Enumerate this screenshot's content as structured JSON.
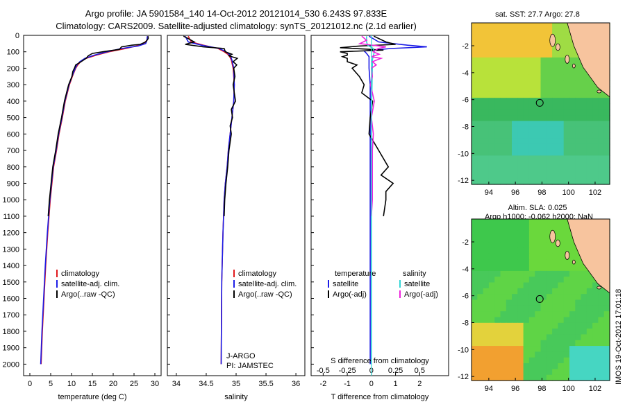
{
  "header": {
    "line1": "Argo profile: JA 5901584_140 14-Oct-2012 20121014_530 6.243S 97.833E",
    "line2": "Climatology: CARS2009. Satellite-adjusted climatology: synTS_20121012.nc (2.1d earlier)"
  },
  "colors": {
    "climatology": "#e0161b",
    "satellite": "#1c1ce6",
    "argo": "#000000",
    "s_satellite": "#33d6d6",
    "s_argo": "#ee22dd",
    "land": "#f7c49e"
  },
  "depth_axis": {
    "ticks": [
      0,
      100,
      200,
      300,
      400,
      500,
      600,
      700,
      800,
      900,
      1000,
      1100,
      1200,
      1300,
      1400,
      1500,
      1600,
      1700,
      1800,
      1900,
      2000
    ],
    "range": [
      0,
      2070
    ]
  },
  "chart_data": [
    {
      "type": "line",
      "id": "temperature",
      "xlabel": "temperature (deg C)",
      "xlim": [
        -1.5,
        31.5
      ],
      "xticks": [
        0,
        5,
        10,
        15,
        20,
        25,
        30
      ],
      "legend": [
        "climatology",
        "satellite-adj. clim.",
        "Argo(..raw -QC)"
      ],
      "series": [
        {
          "name": "climatology",
          "depth": [
            5,
            30,
            50,
            65,
            80,
            100,
            120,
            140,
            160,
            180,
            200,
            250,
            300,
            400,
            500,
            600,
            700,
            800,
            900,
            1000,
            1200,
            1400,
            1600,
            1800,
            2000
          ],
          "values": [
            28.3,
            28.1,
            27.3,
            25.5,
            23,
            19,
            16,
            13.5,
            12.2,
            11.5,
            11.0,
            10.2,
            9.5,
            8.5,
            7.8,
            7.0,
            6.4,
            5.7,
            5.3,
            4.9,
            4.3,
            3.8,
            3.4,
            3.0,
            2.7
          ]
        },
        {
          "name": "satellite-adj. clim.",
          "depth": [
            5,
            30,
            50,
            65,
            80,
            100,
            120,
            140,
            160,
            180,
            200,
            250,
            300,
            400,
            500,
            600,
            700,
            800,
            900,
            1000,
            1200,
            1400,
            1600,
            1800,
            2000
          ],
          "values": [
            28.2,
            28.1,
            27.8,
            26,
            22,
            18.5,
            15.5,
            13.2,
            12,
            11.3,
            10.9,
            10.1,
            9.4,
            8.4,
            7.7,
            6.9,
            6.3,
            5.6,
            5.2,
            4.8,
            4.2,
            3.7,
            3.3,
            2.9,
            2.6
          ]
        },
        {
          "name": "Argo(..raw -QC)",
          "depth": [
            5,
            20,
            40,
            55,
            60,
            70,
            85,
            100,
            110,
            125,
            140,
            160,
            180,
            200,
            220,
            250,
            300,
            400,
            500,
            600,
            700,
            800,
            900,
            1000,
            1100
          ],
          "values": [
            28.4,
            28.4,
            27.8,
            26.5,
            24.5,
            22,
            21.5,
            17.5,
            15,
            14,
            13.5,
            12.3,
            11,
            10.7,
            10.3,
            10.1,
            9.3,
            8.3,
            7.6,
            6.8,
            6.2,
            5.5,
            5.1,
            4.7,
            4.4
          ]
        }
      ]
    },
    {
      "type": "line",
      "id": "salinity",
      "xlabel": "salinity",
      "xlim": [
        33.85,
        36.15
      ],
      "xticks": [
        34,
        34.5,
        35,
        35.5,
        36
      ],
      "legend": [
        "climatology",
        "satellite-adj. clim.",
        "Argo(..raw -QC)"
      ],
      "annotation": [
        "J-ARGO",
        "PI: JAMSTEC"
      ],
      "series": [
        {
          "name": "climatology",
          "depth": [
            5,
            40,
            60,
            80,
            100,
            120,
            150,
            200,
            300,
            400,
            500,
            600,
            700,
            800,
            900,
            1000,
            1200,
            1500,
            2000
          ],
          "values": [
            34.2,
            34.25,
            34.45,
            34.7,
            34.8,
            34.88,
            34.92,
            34.95,
            34.97,
            34.96,
            34.93,
            34.9,
            34.87,
            34.85,
            34.82,
            34.8,
            34.78,
            34.76,
            34.75
          ]
        },
        {
          "name": "satellite-adj. clim.",
          "depth": [
            5,
            40,
            60,
            80,
            100,
            120,
            150,
            200,
            300,
            400,
            500,
            600,
            700,
            800,
            900,
            1000,
            1200,
            1500,
            2000
          ],
          "values": [
            34.15,
            34.2,
            34.42,
            34.72,
            34.83,
            34.9,
            34.93,
            34.96,
            34.97,
            34.96,
            34.93,
            34.9,
            34.87,
            34.85,
            34.82,
            34.8,
            34.78,
            34.76,
            34.75
          ]
        },
        {
          "name": "Argo(..raw -QC)",
          "depth": [
            5,
            20,
            40,
            55,
            70,
            80,
            100,
            115,
            125,
            140,
            160,
            180,
            200,
            250,
            300,
            400,
            450,
            500,
            550,
            600,
            700,
            800,
            900,
            1000,
            1100
          ],
          "values": [
            34.12,
            34.2,
            34.3,
            34.15,
            34.45,
            34.8,
            34.82,
            34.93,
            34.88,
            35.02,
            34.95,
            35.01,
            34.96,
            34.98,
            34.95,
            34.99,
            34.92,
            34.94,
            34.9,
            34.92,
            34.88,
            34.86,
            34.83,
            34.81,
            34.8
          ]
        }
      ]
    },
    {
      "type": "line",
      "id": "difference",
      "xlabel": "T difference from climatology",
      "xlabel2": "S difference from climatology",
      "xlim": [
        -2.5,
        3.2
      ],
      "xticks": [
        -2,
        -1,
        0,
        1,
        2
      ],
      "xticks_labels": [
        "-2",
        "-1",
        "0",
        "1",
        "2"
      ],
      "sticks_labels": [
        "-0.5",
        "-0.25",
        "0",
        "0.25",
        "0.5"
      ],
      "legend_t": [
        "temperature",
        "satellite",
        "Argo(-adj)"
      ],
      "legend_s": [
        "salinity",
        "satellite",
        "Argo(-adj)"
      ],
      "series": [
        {
          "name": "T satellite",
          "depth": [
            5,
            40,
            60,
            70,
            80,
            95,
            110,
            130,
            160,
            200,
            300,
            500,
            800,
            1200,
            1600,
            2000
          ],
          "values": [
            -0.1,
            0.3,
            1.5,
            2.3,
            0.8,
            -0.3,
            -0.2,
            -0.1,
            -0.1,
            -0.1,
            -0.05,
            -0.05,
            -0.05,
            -0.05,
            -0.05,
            -0.05
          ]
        },
        {
          "name": "T Argo(-adj)",
          "depth": [
            5,
            40,
            55,
            65,
            75,
            90,
            100,
            110,
            120,
            130,
            140,
            160,
            180,
            200,
            250,
            300,
            350,
            400,
            500,
            600,
            700,
            800,
            850,
            900,
            950,
            1000,
            1100
          ],
          "values": [
            0.1,
            0.6,
            1.0,
            -0.5,
            -1.3,
            0.5,
            -1.3,
            -1.0,
            -1.0,
            -1.2,
            -1.0,
            -1.0,
            -0.6,
            -0.8,
            -0.5,
            -0.3,
            -0.4,
            0.05,
            -0.05,
            -0.1,
            0.3,
            0.7,
            0.4,
            0.9,
            0.6,
            0.6,
            0.5
          ]
        },
        {
          "name": "S satellite",
          "depth": [
            5,
            40,
            60,
            80,
            100,
            150,
            200,
            500,
            1000,
            1500,
            2000
          ],
          "values": [
            -0.05,
            -0.05,
            -0.04,
            0.02,
            0.03,
            0.01,
            0.01,
            0,
            0,
            0,
            0
          ]
        },
        {
          "name": "S Argo(-adj)",
          "depth": [
            5,
            30,
            50,
            70,
            80,
            100,
            115,
            130,
            140,
            160,
            180,
            200,
            250,
            300,
            400,
            500,
            600,
            700,
            800,
            900,
            1000,
            1100
          ],
          "values": [
            -0.1,
            -0.05,
            -0.12,
            0.15,
            0.07,
            0.02,
            0.08,
            0.0,
            0.1,
            0.01,
            0.05,
            0.0,
            0.01,
            -0.01,
            0.03,
            0.0,
            0.02,
            0.01,
            0.01,
            0.01,
            0.01,
            0.0
          ]
        }
      ]
    }
  ],
  "maps": {
    "top_title": "sat. SST: 27.7 Argo: 27.8",
    "bottom_title1": "Altim. SLA: 0.025",
    "bottom_title2": "Argo h1000: -0.062 h2000: NaN",
    "lon_ticks": [
      94,
      96,
      98,
      100,
      102
    ],
    "lat_ticks": [
      -2,
      -4,
      -6,
      -8,
      -10,
      -12
    ],
    "argo_lon": 97.833,
    "argo_lat": -6.243,
    "lon_range": [
      92.7,
      103.1
    ],
    "lat_range": [
      -12.3,
      -0.3
    ]
  },
  "watermark": "IMOS 19-Oct-2012 17:01:18"
}
